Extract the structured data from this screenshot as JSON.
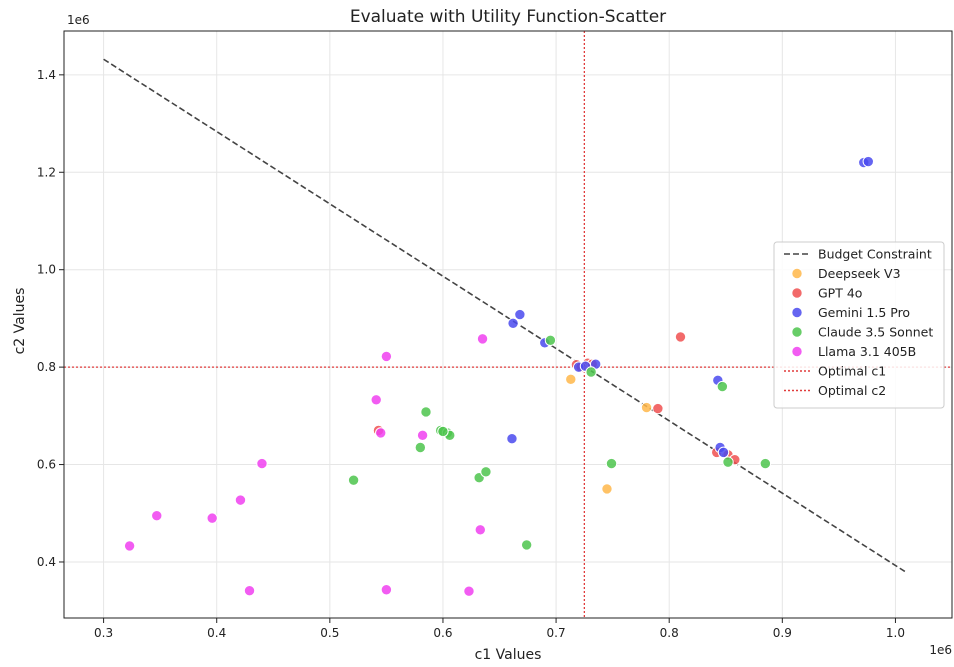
{
  "chart_data": {
    "type": "scatter",
    "title": "Evaluate with Utility Function-Scatter",
    "xlabel": "c1 Values",
    "ylabel": "c2 Values",
    "x_offset_text": "1e6",
    "y_offset_text": "1e6",
    "xlim": [
      0.265,
      1.05
    ],
    "ylim": [
      0.285,
      1.49
    ],
    "x_ticks": [
      0.3,
      0.4,
      0.5,
      0.6,
      0.7,
      0.8,
      0.9,
      1.0
    ],
    "x_tick_labels": [
      "0.3",
      "0.4",
      "0.5",
      "0.6",
      "0.7",
      "0.8",
      "0.9",
      "1.0"
    ],
    "y_ticks": [
      0.4,
      0.6,
      0.8,
      1.0,
      1.2,
      1.4
    ],
    "y_tick_labels": [
      "0.4",
      "0.6",
      "0.8",
      "1.0",
      "1.2",
      "1.4"
    ],
    "grid": true,
    "legend_placement": "center-right",
    "budget_constraint": {
      "name": "Budget Constraint",
      "color": "#444444",
      "x": [
        0.3,
        1.01
      ],
      "y": [
        1.432,
        0.378
      ]
    },
    "optimal_c1": {
      "name": "Optimal c1",
      "value": 0.725,
      "color": "#e03c3c"
    },
    "optimal_c2": {
      "name": "Optimal c2",
      "value": 0.8,
      "color": "#e03c3c"
    },
    "series": [
      {
        "name": "Deepseek V3",
        "color": "#ffb74a",
        "x": [
          0.713,
          0.745,
          0.78,
          0.727
        ],
        "y": [
          0.775,
          0.55,
          0.717,
          0.8
        ]
      },
      {
        "name": "GPT 4o",
        "color": "#f05050",
        "x": [
          0.81,
          0.79,
          0.718,
          0.728,
          0.722,
          0.732,
          0.842,
          0.852,
          0.858,
          0.543
        ],
        "y": [
          0.862,
          0.715,
          0.805,
          0.808,
          0.8,
          0.806,
          0.625,
          0.62,
          0.61,
          0.67
        ]
      },
      {
        "name": "Gemini 1.5 Pro",
        "color": "#4a4aee",
        "x": [
          0.972,
          0.976,
          0.668,
          0.662,
          0.69,
          0.661,
          0.72,
          0.735,
          0.726,
          0.843,
          0.845,
          0.848
        ],
        "y": [
          1.22,
          1.222,
          0.908,
          0.89,
          0.85,
          0.653,
          0.8,
          0.806,
          0.802,
          0.773,
          0.635,
          0.625
        ]
      },
      {
        "name": "Claude 3.5 Sonnet",
        "color": "#4cc44c",
        "x": [
          0.695,
          0.585,
          0.598,
          0.604,
          0.606,
          0.58,
          0.521,
          0.632,
          0.638,
          0.674,
          0.749,
          0.847,
          0.852,
          0.885,
          0.731,
          0.6
        ],
        "y": [
          0.855,
          0.708,
          0.67,
          0.665,
          0.66,
          0.635,
          0.568,
          0.573,
          0.585,
          0.435,
          0.602,
          0.76,
          0.605,
          0.602,
          0.79,
          0.668
        ]
      },
      {
        "name": "Llama 3.1 405B",
        "color": "#f040f0",
        "x": [
          0.635,
          0.55,
          0.541,
          0.545,
          0.582,
          0.44,
          0.421,
          0.347,
          0.396,
          0.323,
          0.633,
          0.429,
          0.55,
          0.623
        ],
        "y": [
          0.858,
          0.822,
          0.733,
          0.665,
          0.66,
          0.602,
          0.527,
          0.495,
          0.49,
          0.433,
          0.466,
          0.341,
          0.343,
          0.34
        ]
      }
    ]
  }
}
